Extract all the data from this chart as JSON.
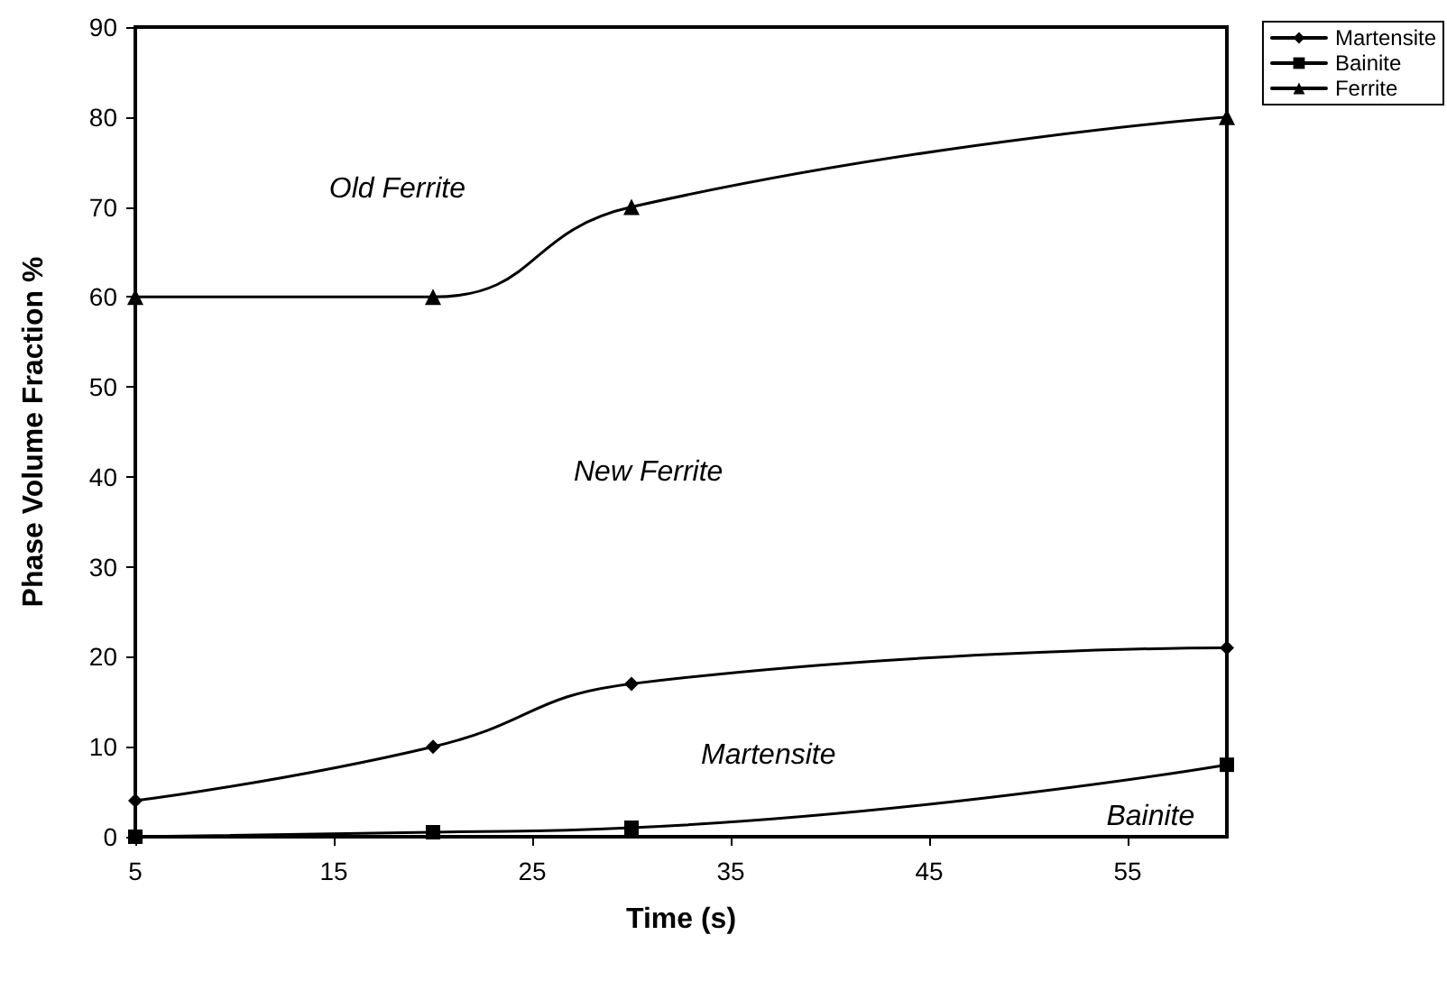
{
  "chart_data": {
    "type": "line",
    "xlabel": "Time (s)",
    "ylabel": "Phase Volume Fraction %",
    "xlim": [
      5,
      60
    ],
    "xticks": [
      5,
      15,
      25,
      35,
      45,
      55
    ],
    "ylim": [
      0,
      90
    ],
    "yticks": [
      0,
      10,
      20,
      30,
      40,
      50,
      60,
      70,
      80,
      90
    ],
    "grid": false,
    "legend": "top right",
    "line_style": "solid",
    "series": [
      {
        "name": "Martensite",
        "color": "#000000",
        "marker": "diamond",
        "x": [
          5,
          20,
          30,
          60
        ],
        "values": [
          4,
          10,
          17,
          21
        ]
      },
      {
        "name": "Bainite",
        "color": "#000000",
        "marker": "square",
        "x": [
          5,
          20,
          30,
          60
        ],
        "values": [
          0,
          0.5,
          1,
          8
        ]
      },
      {
        "name": "Ferrite",
        "color": "#000000",
        "marker": "triangle",
        "x": [
          5,
          20,
          30,
          60
        ],
        "values": [
          60,
          60,
          70,
          80
        ]
      }
    ],
    "annotations": [
      "Old Ferrite",
      "New Ferrite",
      "Martensite",
      "Bainite"
    ]
  }
}
